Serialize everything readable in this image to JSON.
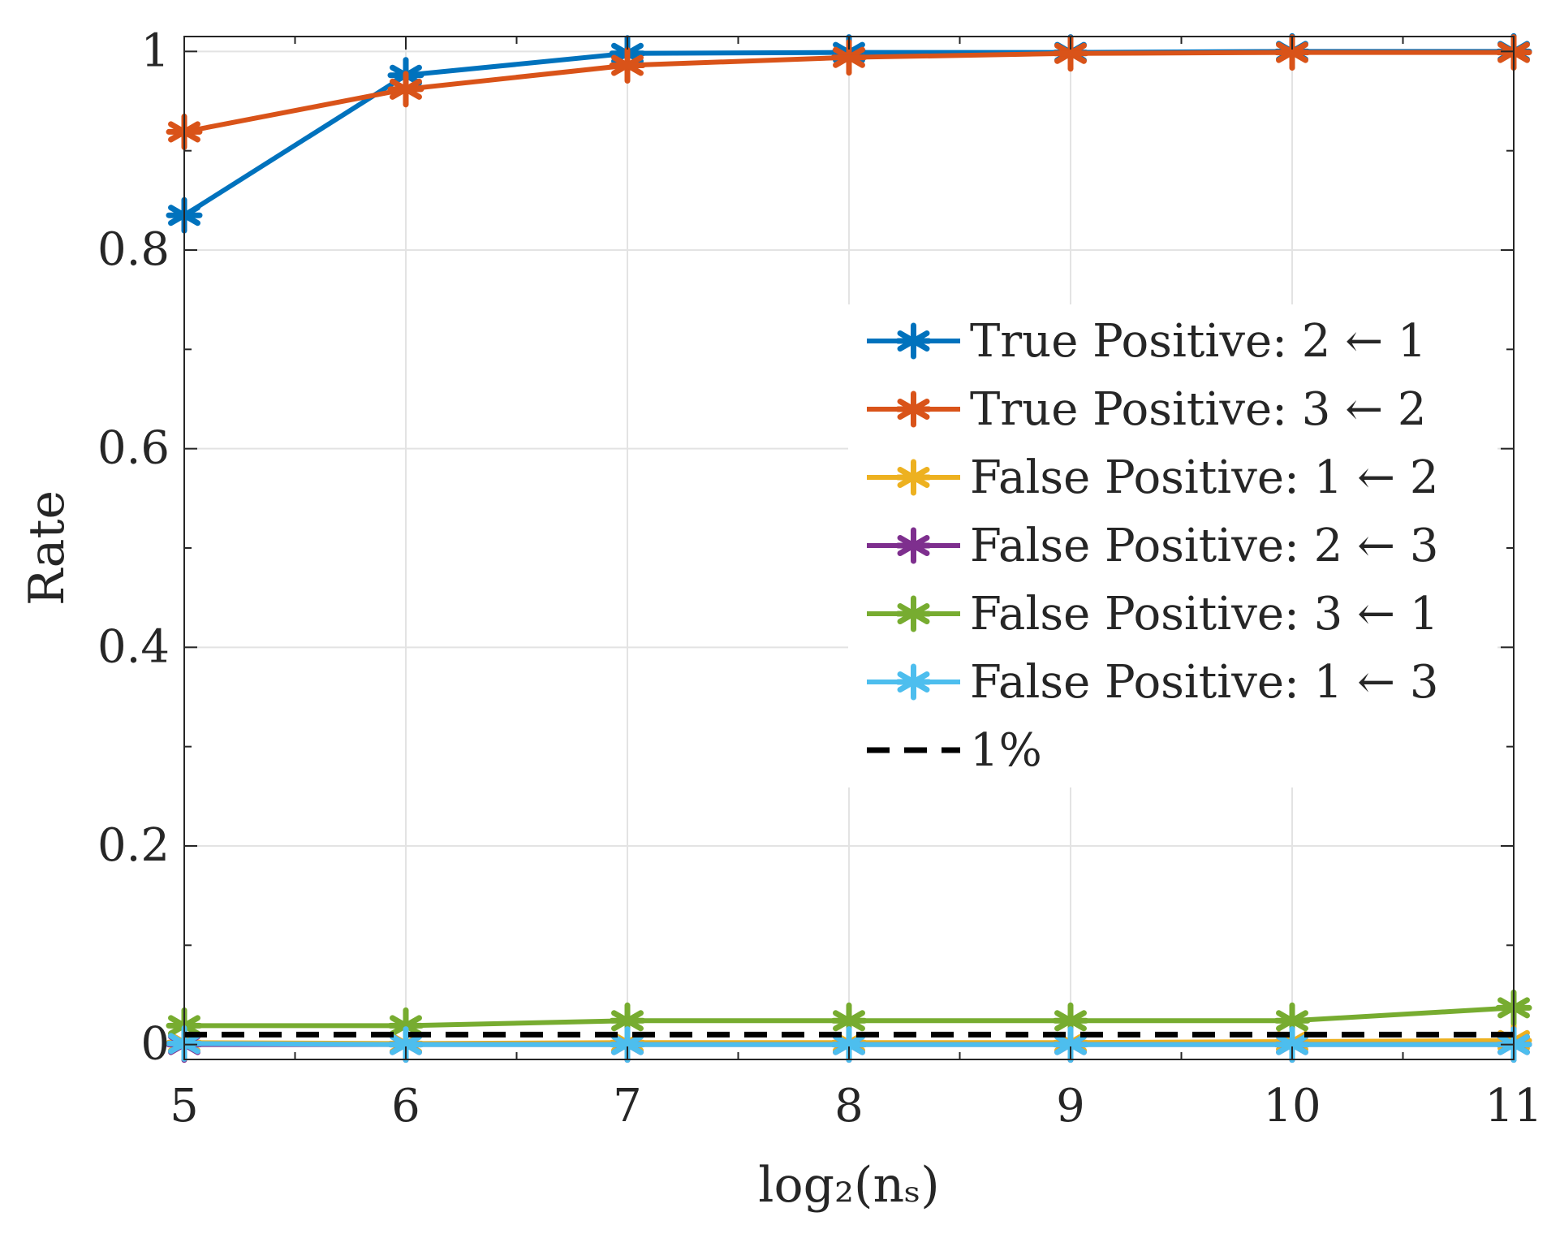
{
  "chart_data": {
    "type": "line",
    "title": "",
    "xlabel": "log₂(nₛ)",
    "ylabel": "Rate",
    "x": [
      5,
      6,
      7,
      8,
      9,
      10,
      11
    ],
    "xlim": [
      5,
      11
    ],
    "ylim": [
      -0.015,
      1.015
    ],
    "xticks": [
      5,
      6,
      7,
      8,
      9,
      10,
      11
    ],
    "yticks": [
      0,
      0.2,
      0.4,
      0.6,
      0.8,
      1
    ],
    "xtick_labels": [
      "5",
      "6",
      "7",
      "8",
      "9",
      "10",
      "11"
    ],
    "ytick_labels": [
      "0",
      "0.2",
      "0.4",
      "0.6",
      "0.8",
      "1"
    ],
    "grid": true,
    "legend_position": "right",
    "series": [
      {
        "name": "True Positive: 2 ← 1",
        "color": "#0072BD",
        "marker": "asterisk",
        "style": "solid",
        "values": [
          0.835,
          0.976,
          0.998,
          0.999,
          0.999,
          1.0,
          1.0
        ]
      },
      {
        "name": "True Positive: 3 ← 2",
        "color": "#D95319",
        "marker": "asterisk",
        "style": "solid",
        "values": [
          0.919,
          0.962,
          0.986,
          0.994,
          0.998,
          0.999,
          0.999
        ]
      },
      {
        "name": "False Positive: 1 ← 2",
        "color": "#EDB120",
        "marker": "asterisk",
        "style": "solid",
        "values": [
          0.002,
          0.001,
          0.002,
          0.002,
          0.002,
          0.003,
          0.004
        ]
      },
      {
        "name": "False Positive: 2 ← 3",
        "color": "#7E2F8E",
        "marker": "asterisk",
        "style": "solid",
        "values": [
          0.0,
          0.0,
          0.0,
          0.0,
          0.0,
          0.0,
          0.0
        ]
      },
      {
        "name": "False Positive: 3 ← 1",
        "color": "#77AC30",
        "marker": "asterisk",
        "style": "solid",
        "values": [
          0.019,
          0.019,
          0.024,
          0.024,
          0.024,
          0.024,
          0.037
        ]
      },
      {
        "name": "False Positive: 1 ← 3",
        "color": "#4DBEEE",
        "marker": "asterisk",
        "style": "solid",
        "values": [
          0.001,
          0.0,
          0.0,
          0.0,
          0.0,
          0.0,
          0.0
        ]
      },
      {
        "name": "1%",
        "color": "#000000",
        "marker": "none",
        "style": "dashed",
        "values": [
          0.01,
          0.01,
          0.01,
          0.01,
          0.01,
          0.01,
          0.01
        ]
      }
    ]
  }
}
